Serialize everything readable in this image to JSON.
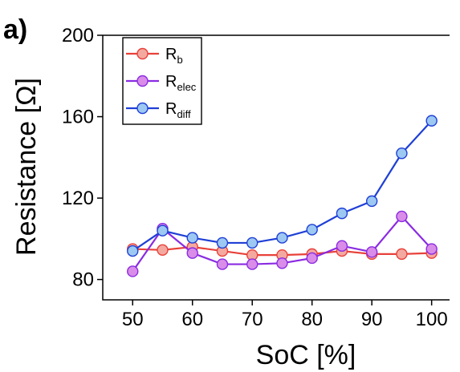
{
  "panel_label": "a)",
  "chart_data": {
    "type": "line",
    "xlabel": "SoC [%]",
    "ylabel": "Resistance [Ω]",
    "xlim": [
      45,
      103
    ],
    "ylim": [
      70,
      200
    ],
    "x_ticks": [
      50,
      60,
      70,
      80,
      90,
      100
    ],
    "y_ticks": [
      80,
      120,
      160,
      200
    ],
    "x": [
      50,
      55,
      60,
      65,
      70,
      75,
      80,
      85,
      90,
      95,
      100
    ],
    "legend_position": "top-left",
    "series": [
      {
        "name": "R",
        "subscript": "b",
        "line_color": "#e8413a",
        "marker_color": "#f4a9a0",
        "values": [
          95,
          94.5,
          96,
          94,
          92,
          92,
          92.5,
          94,
          92.5,
          92.5,
          93
        ]
      },
      {
        "name": "R",
        "subscript": "elec",
        "line_color": "#8a2be2",
        "marker_color": "#d98ce8",
        "values": [
          84,
          105,
          93,
          87.5,
          87.5,
          88,
          90.5,
          96.5,
          93.5,
          111,
          95
        ]
      },
      {
        "name": "R",
        "subscript": "diff",
        "line_color": "#1f3fd6",
        "marker_color": "#9cc8f2",
        "values": [
          94,
          104,
          100.5,
          98,
          98,
          100.5,
          104.5,
          112.5,
          118.5,
          142,
          158
        ]
      }
    ]
  }
}
